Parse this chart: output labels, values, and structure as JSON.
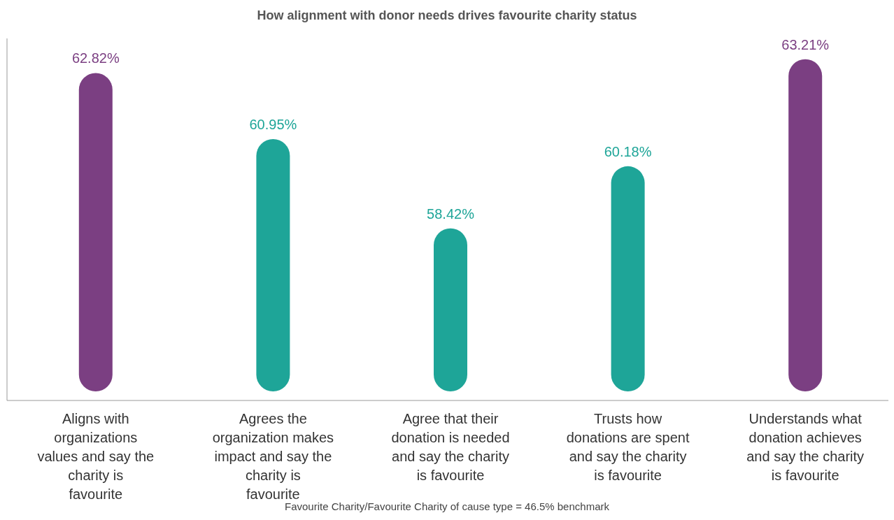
{
  "chart_data": {
    "type": "bar",
    "title": "How alignment with donor needs drives favourite charity status",
    "categories": [
      "Aligns with organizations values and say the charity is favourite",
      "Agrees the organization makes impact and say the charity is favourite",
      "Agree that their donation is needed and say the charity is favourite",
      "Trusts how donations are spent and say the charity is favourite",
      "Understands what donation achieves and say the charity is favourite"
    ],
    "values": [
      62.82,
      60.95,
      58.42,
      60.18,
      63.21
    ],
    "colors": [
      "#7b3f82",
      "#1ea598",
      "#1ea598",
      "#1ea598",
      "#7b3f82"
    ],
    "value_labels": [
      "62.82%",
      "60.95%",
      "58.42%",
      "60.18%",
      "63.21%"
    ],
    "ylim": [
      53.8,
      63.8
    ],
    "annotations": [
      "Favourite Charity/Favourite Charity of cause type = 46.5% benchmark"
    ]
  }
}
